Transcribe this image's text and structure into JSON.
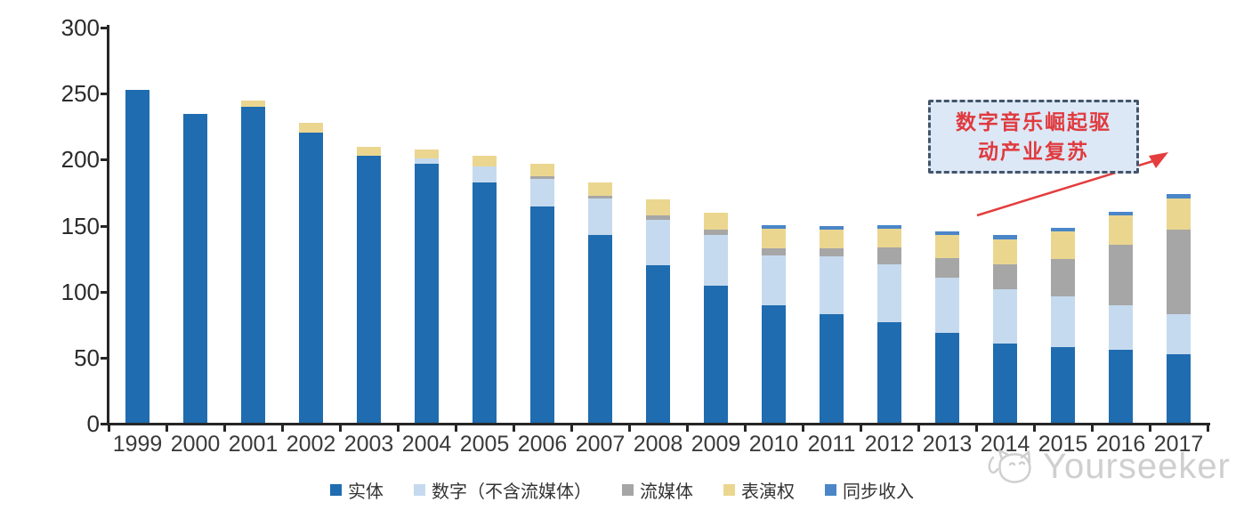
{
  "chart_data": {
    "type": "bar",
    "stacked": true,
    "title": "",
    "xlabel": "",
    "ylabel": "",
    "ylim": [
      0,
      300
    ],
    "y_ticks": [
      0,
      50,
      100,
      150,
      200,
      250,
      300
    ],
    "grid": false,
    "legend_position": "bottom",
    "categories": [
      "1999",
      "2000",
      "2001",
      "2002",
      "2003",
      "2004",
      "2005",
      "2006",
      "2007",
      "2008",
      "2009",
      "2010",
      "2011",
      "2012",
      "2013",
      "2014",
      "2015",
      "2016",
      "2017"
    ],
    "series": [
      {
        "name": "实体",
        "key": "physical",
        "color": "#1f6cb0",
        "values": [
          252,
          234,
          239,
          220,
          202,
          196,
          182,
          164,
          142,
          119,
          104,
          89,
          82,
          76,
          68,
          60,
          57,
          55,
          52
        ]
      },
      {
        "name": "数字（不含流媒体）",
        "key": "digital-excl-streaming",
        "color": "#c5daee",
        "values": [
          0,
          0,
          0,
          0,
          0,
          4,
          12,
          21,
          28,
          35,
          38,
          38,
          44,
          44,
          42,
          41,
          39,
          34,
          30
        ]
      },
      {
        "name": "流媒体",
        "key": "streaming",
        "color": "#a6a6a6",
        "values": [
          0,
          0,
          0,
          0,
          0,
          0,
          0,
          2,
          2,
          3,
          4,
          5,
          6,
          13,
          15,
          19,
          28,
          46,
          64
        ]
      },
      {
        "name": "表演权",
        "key": "performance-rights",
        "color": "#ebd690",
        "values": [
          0,
          0,
          5,
          7,
          7,
          7,
          8,
          9,
          10,
          12,
          13,
          15,
          14,
          14,
          17,
          19,
          21,
          22,
          24
        ]
      },
      {
        "name": "同步收入",
        "key": "sync-revenue",
        "color": "#4a86c8",
        "values": [
          0,
          0,
          0,
          0,
          0,
          0,
          0,
          0,
          0,
          0,
          0,
          3,
          3,
          3,
          3,
          3,
          3,
          3,
          3
        ]
      }
    ]
  },
  "annotation": {
    "text": "数字音乐崛起驱动产业复苏",
    "lines": [
      "数字音乐崛起驱",
      "动产业复苏"
    ],
    "text_color": "#e03a3e",
    "box_fill": "#dce8f6",
    "box_border": "#44546a",
    "arrow_color": "#e43d3d"
  },
  "watermark": {
    "text": "Yourseeker",
    "color": "#c7c7c7"
  },
  "colors": {
    "axis": "#262626",
    "background": "#ffffff"
  }
}
